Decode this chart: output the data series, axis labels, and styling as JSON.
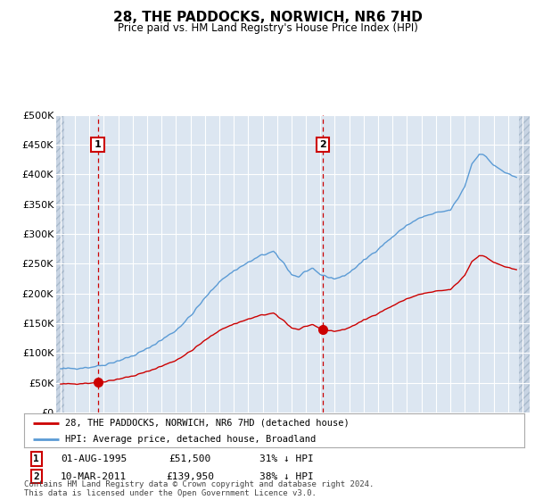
{
  "title": "28, THE PADDOCKS, NORWICH, NR6 7HD",
  "subtitle": "Price paid vs. HM Land Registry's House Price Index (HPI)",
  "hpi_label": "HPI: Average price, detached house, Broadland",
  "price_label": "28, THE PADDOCKS, NORWICH, NR6 7HD (detached house)",
  "footer": "Contains HM Land Registry data © Crown copyright and database right 2024.\nThis data is licensed under the Open Government Licence v3.0.",
  "ylim": [
    0,
    500000
  ],
  "yticks": [
    0,
    50000,
    100000,
    150000,
    200000,
    250000,
    300000,
    350000,
    400000,
    450000,
    500000
  ],
  "ytick_labels": [
    "£0",
    "£50K",
    "£100K",
    "£150K",
    "£200K",
    "£250K",
    "£300K",
    "£350K",
    "£400K",
    "£450K",
    "£500K"
  ],
  "sale1_year": 1995.583,
  "sale1_price": 51500,
  "sale1_label": "1",
  "sale1_date": "01-AUG-1995",
  "sale1_price_str": "£51,500",
  "sale1_hpi": "31% ↓ HPI",
  "sale2_year": 2011.167,
  "sale2_price": 139950,
  "sale2_label": "2",
  "sale2_date": "10-MAR-2011",
  "sale2_price_str": "£139,950",
  "sale2_hpi": "38% ↓ HPI",
  "hpi_color": "#5b9bd5",
  "price_color": "#cc0000",
  "dashed_line_color": "#cc0000",
  "background_color": "#dce6f1",
  "grid_color": "#ffffff",
  "xlim_start": 1992.7,
  "xlim_end": 2025.5
}
